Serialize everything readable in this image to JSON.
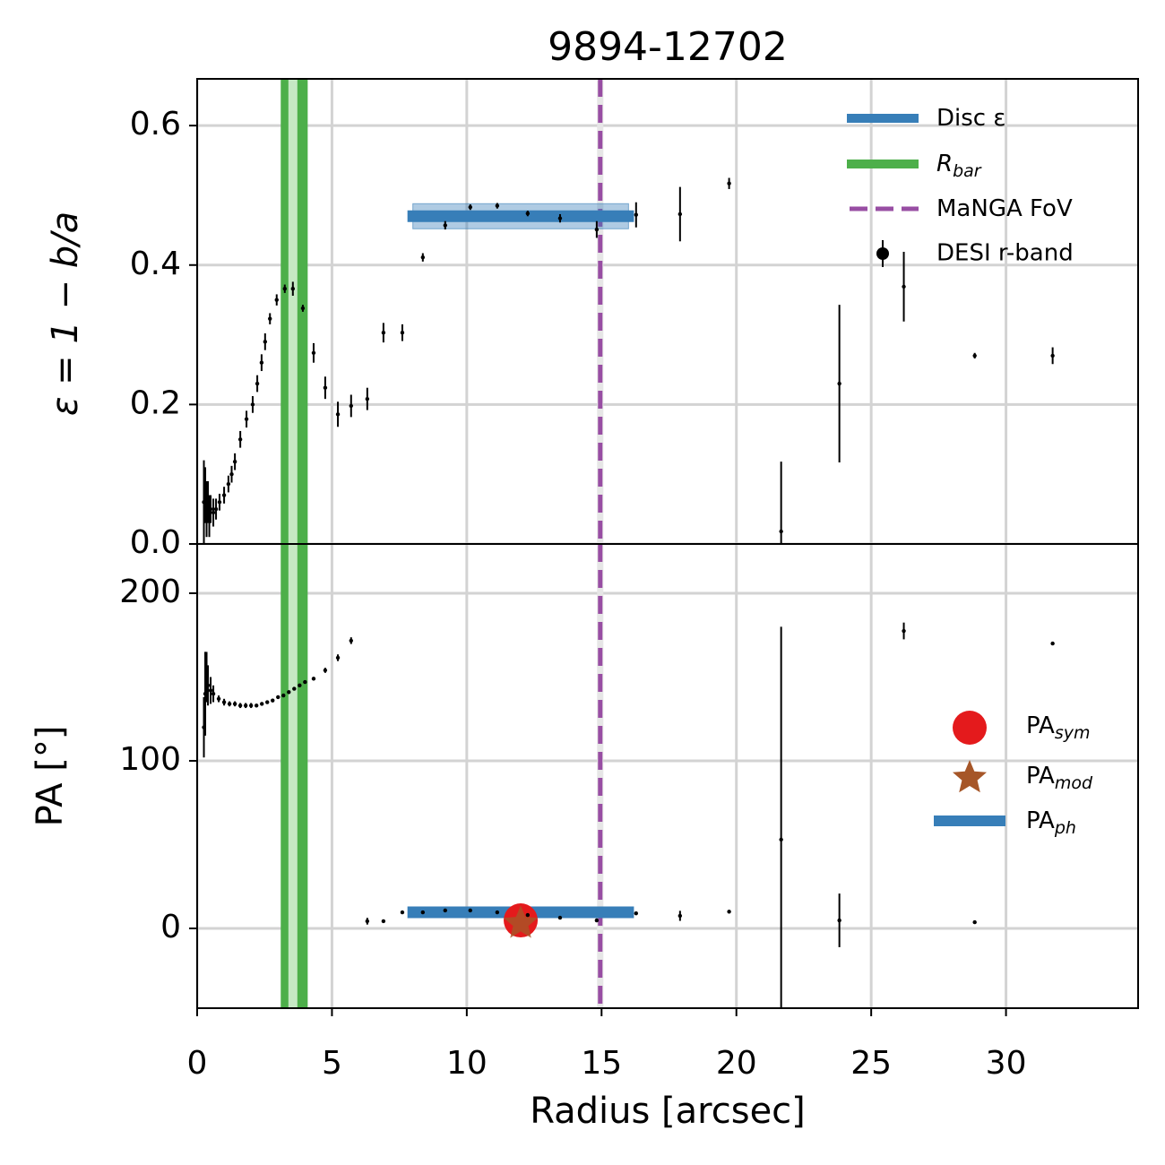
{
  "chart_data": [
    {
      "type": "errorbar",
      "title": "9894-12702",
      "ylabel": "ε = 1 − b/a",
      "xlim": [
        0,
        34.9
      ],
      "xticks": [
        0,
        5,
        10,
        15,
        20,
        25,
        30
      ],
      "ylim": [
        0,
        0.667
      ],
      "yticks": [
        {
          "value": 0,
          "label": "0.0"
        },
        0.2,
        0.4,
        0.6
      ],
      "grid": true,
      "series": [
        {
          "name": "DESI r-band",
          "color": "#000000",
          "x": [
            0.25,
            0.3,
            0.35,
            0.4,
            0.45,
            0.5,
            0.6,
            0.7,
            0.83,
            1.0,
            1.16,
            1.28,
            1.4,
            1.6,
            1.83,
            2.06,
            2.23,
            2.39,
            2.52,
            2.7,
            2.95,
            3.25,
            3.55,
            3.92,
            4.32,
            4.75,
            5.22,
            5.71,
            6.31,
            6.91,
            7.61,
            8.37,
            9.2,
            10.13,
            11.13,
            12.26,
            13.46,
            14.82,
            16.28,
            17.91,
            19.73,
            21.66,
            23.82,
            26.21,
            28.84,
            31.73
          ],
          "values": [
            0.06,
            0.07,
            0.05,
            0.06,
            0.04,
            0.05,
            0.045,
            0.05,
            0.06,
            0.07,
            0.086,
            0.1,
            0.118,
            0.15,
            0.179,
            0.2,
            0.23,
            0.26,
            0.29,
            0.323,
            0.35,
            0.366,
            0.366,
            0.338,
            0.274,
            0.224,
            0.186,
            0.198,
            0.208,
            0.303,
            0.303,
            0.411,
            0.457,
            0.483,
            0.485,
            0.474,
            0.467,
            0.451,
            0.472,
            0.473,
            0.517,
            0.018,
            0.23,
            0.369,
            0.27,
            0.27
          ],
          "errors": [
            0.06,
            0.04,
            0.04,
            0.03,
            0.03,
            0.02,
            0.02,
            0.015,
            0.012,
            0.012,
            0.012,
            0.012,
            0.012,
            0.012,
            0.012,
            0.012,
            0.012,
            0.012,
            0.012,
            0.008,
            0.008,
            0.006,
            0.01,
            0.005,
            0.014,
            0.016,
            0.018,
            0.016,
            0.016,
            0.014,
            0.012,
            0.006,
            0.006,
            0.004,
            0.004,
            0.004,
            0.006,
            0.012,
            0.018,
            0.039,
            0.008,
            0.1,
            0.113,
            0.05,
            0.004,
            0.012
          ]
        }
      ],
      "disc": {
        "name": "Disc ε",
        "color": "#377eb8",
        "value": 0.47,
        "x_range": [
          7.8,
          16.2
        ],
        "band": [
          0.452,
          0.488
        ],
        "band_x": [
          8.0,
          16.0
        ]
      },
      "r_bar": {
        "name": "R",
        "name_sub": "bar",
        "color": "#4daf4a",
        "value": 3.55,
        "span": [
          3.1,
          4.1
        ]
      },
      "fov": {
        "name": "MaNGA FoV",
        "color": "#984ea3",
        "value": 14.95
      }
    },
    {
      "type": "errorbar",
      "ylabel": "PA [°]",
      "xlabel": "Radius [arcsec]",
      "xlim": [
        0,
        34.9
      ],
      "xticks": [
        0,
        5,
        10,
        15,
        20,
        25,
        30
      ],
      "ylim": [
        -47.6,
        229.4
      ],
      "yticks": [
        0,
        100,
        200
      ],
      "grid": true,
      "series": [
        {
          "color": "#000000",
          "x": [
            0.25,
            0.3,
            0.35,
            0.4,
            0.5,
            0.6,
            0.8,
            1.0,
            1.2,
            1.4,
            1.6,
            1.8,
            2.0,
            2.2,
            2.4,
            2.6,
            2.8,
            3.0,
            3.2,
            3.4,
            3.6,
            3.8,
            4.0,
            4.32,
            4.75,
            5.22,
            5.71,
            6.31,
            6.91,
            7.61,
            8.37,
            9.2,
            10.13,
            11.13,
            12.26,
            13.46,
            14.82,
            16.28,
            17.91,
            19.73,
            21.66,
            23.82,
            26.21,
            28.84,
            31.73
          ],
          "values": [
            120,
            140,
            150,
            145,
            142,
            140,
            137,
            135,
            134,
            134,
            133,
            133,
            133,
            133,
            134,
            135,
            136,
            138,
            139,
            141,
            143,
            145,
            147,
            149,
            154,
            161.5,
            171.7,
            4.3,
            4.3,
            9.6,
            9.6,
            10.7,
            10.7,
            9.6,
            8,
            6.4,
            4.8,
            9,
            7.5,
            10,
            53,
            4.8,
            177.5,
            3.7,
            170
          ],
          "errors": [
            18,
            25,
            15,
            12,
            8,
            5,
            2,
            2,
            1.5,
            1.5,
            1.5,
            1.5,
            1.5,
            1,
            1,
            1,
            1,
            1,
            1,
            1,
            1,
            1,
            1,
            1,
            1.5,
            2,
            2,
            2,
            1,
            1,
            1,
            1,
            1,
            1,
            1,
            1,
            1,
            1,
            3,
            1,
            127,
            16,
            5,
            1,
            1
          ]
        }
      ],
      "pa_sym": {
        "name": "PA",
        "name_sub": "sym",
        "color": "#e41a1c",
        "x": 12.0,
        "value": 4.8
      },
      "pa_mod": {
        "name": "PA",
        "name_sub": "mod",
        "color": "#a65628",
        "x": 12.0,
        "value": 3
      },
      "pa_ph": {
        "name": "PA",
        "name_sub": "ph",
        "color": "#377eb8",
        "value": 9.6,
        "x_range": [
          7.8,
          16.2
        ]
      }
    }
  ]
}
